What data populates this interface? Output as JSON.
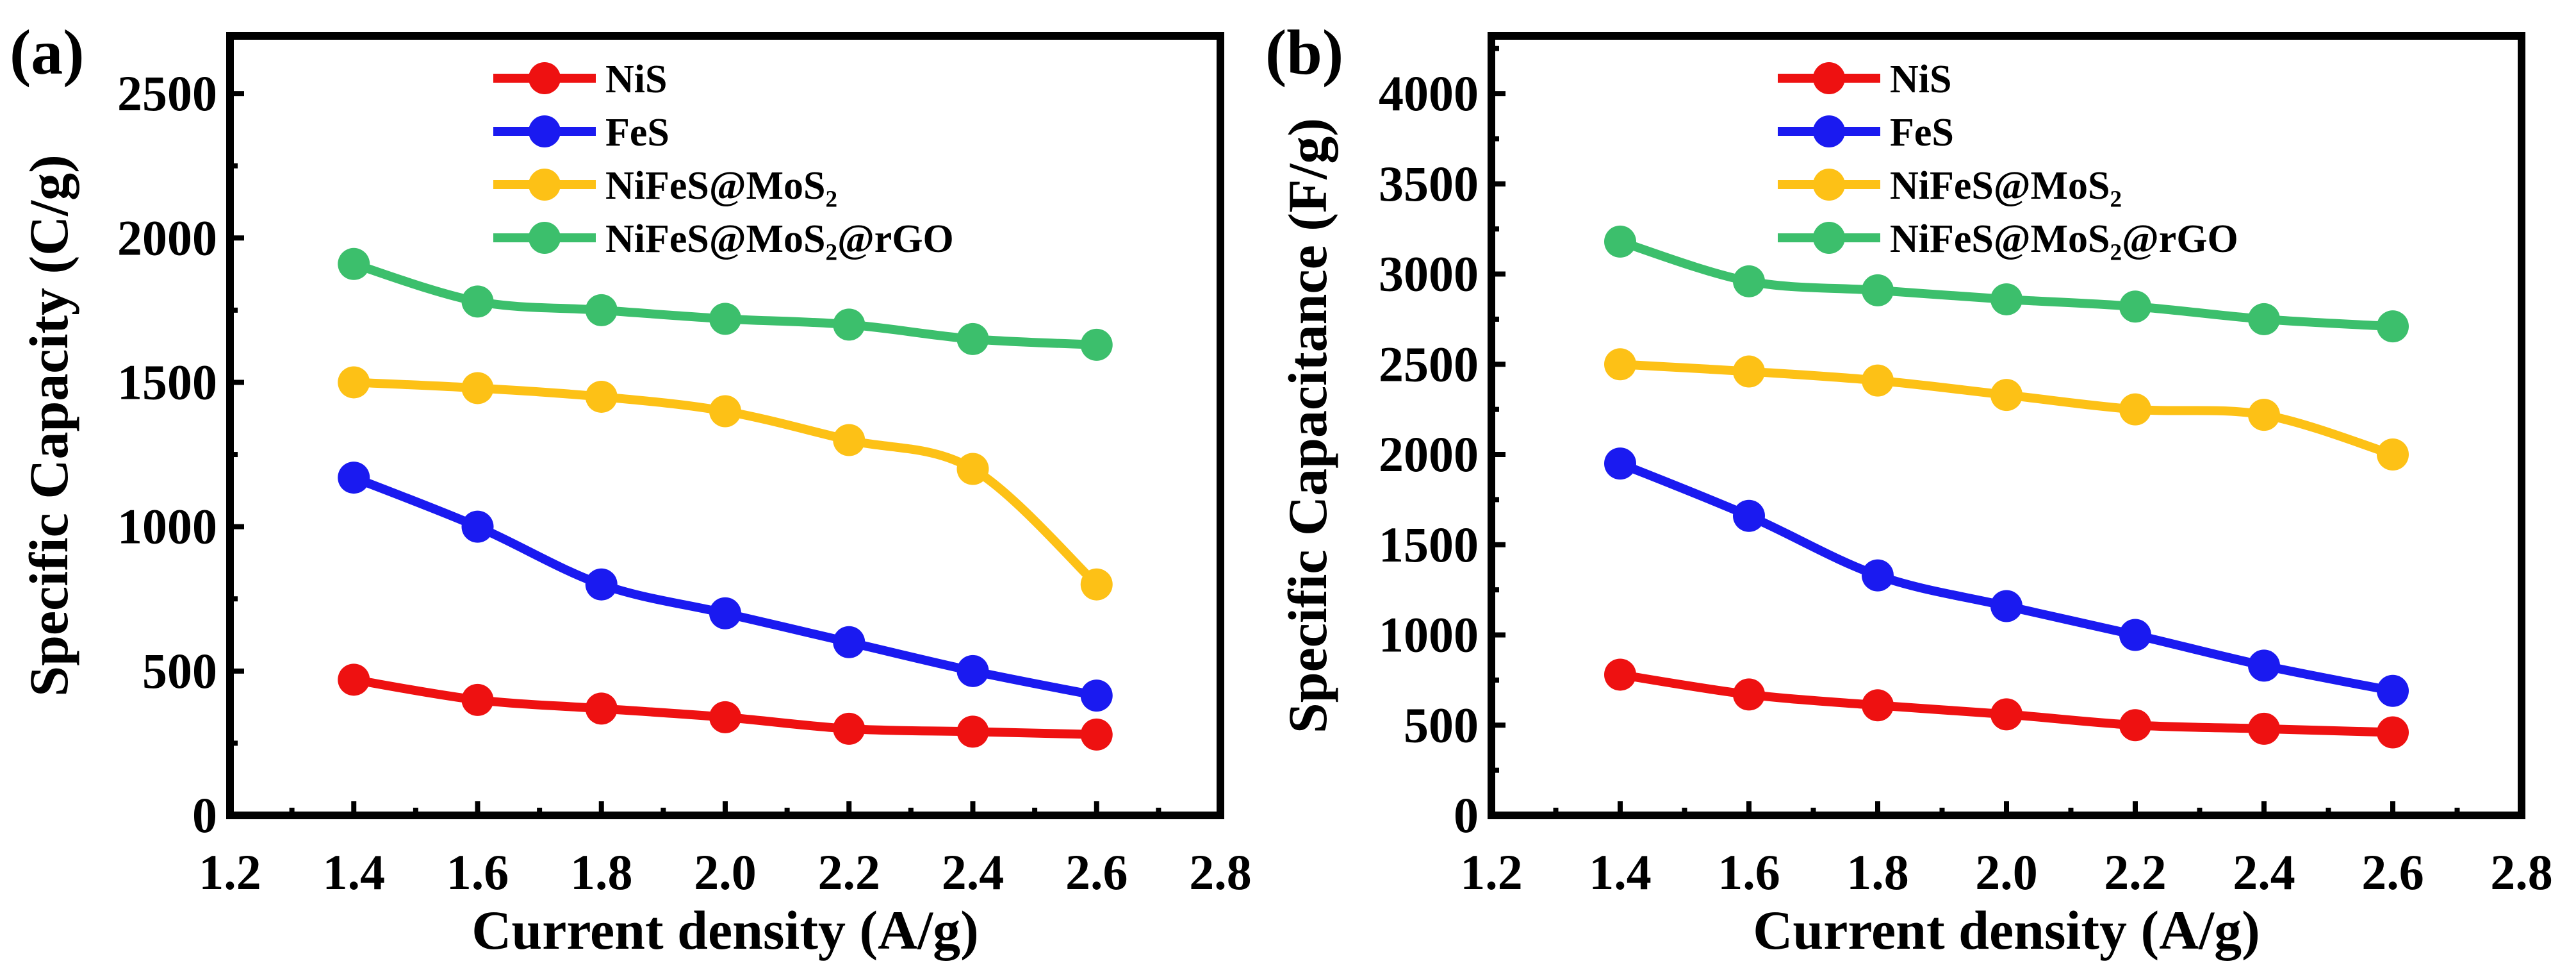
{
  "chart_data": [
    {
      "type": "line",
      "panel_label": "(a)",
      "title": "",
      "xlabel": "Current density (A/g)",
      "ylabel": "Specific Capacity (C/g)",
      "xlim": [
        1.2,
        2.8
      ],
      "ylim": [
        0,
        2700
      ],
      "xticks": [
        "1.2",
        "1.4",
        "1.6",
        "1.8",
        "2.0",
        "2.2",
        "2.4",
        "2.6",
        "2.8"
      ],
      "yticks": [
        "0",
        "500",
        "1000",
        "1500",
        "2000",
        "2500"
      ],
      "legend_position": "top-center",
      "grid": false,
      "x": [
        1.4,
        1.6,
        1.8,
        2.0,
        2.2,
        2.4,
        2.6
      ],
      "series": [
        {
          "name": "NiS",
          "color": "#ee1111",
          "values": [
            470,
            400,
            370,
            340,
            300,
            290,
            280
          ]
        },
        {
          "name": "FeS",
          "color": "#1a1af0",
          "values": [
            1170,
            1000,
            800,
            700,
            600,
            500,
            415
          ]
        },
        {
          "name": "NiFeS@MoS₂",
          "color": "#fdc116",
          "values": [
            1500,
            1480,
            1450,
            1400,
            1300,
            1200,
            800
          ]
        },
        {
          "name": "NiFeS@MoS₂@rGO",
          "color": "#3cbf6c",
          "values": [
            1910,
            1780,
            1750,
            1720,
            1700,
            1650,
            1630
          ]
        }
      ]
    },
    {
      "type": "line",
      "panel_label": "(b)",
      "title": "",
      "xlabel": "Current density (A/g)",
      "ylabel": "Specific Capacitance (F/g)",
      "xlim": [
        1.2,
        2.8
      ],
      "ylim": [
        0,
        4320
      ],
      "xticks": [
        "1.2",
        "1.4",
        "1.6",
        "1.8",
        "2.0",
        "2.2",
        "2.4",
        "2.6",
        "2.8"
      ],
      "yticks": [
        "0",
        "500",
        "1000",
        "1500",
        "2000",
        "2500",
        "3000",
        "3500",
        "4000"
      ],
      "legend_position": "top-center",
      "grid": false,
      "x": [
        1.4,
        1.6,
        1.8,
        2.0,
        2.2,
        2.4,
        2.6
      ],
      "series": [
        {
          "name": "NiS",
          "color": "#ee1111",
          "values": [
            780,
            670,
            610,
            560,
            500,
            480,
            460
          ]
        },
        {
          "name": "FeS",
          "color": "#1a1af0",
          "values": [
            1950,
            1660,
            1330,
            1160,
            1000,
            830,
            690
          ]
        },
        {
          "name": "NiFeS@MoS₂",
          "color": "#fdc116",
          "values": [
            2500,
            2460,
            2410,
            2330,
            2250,
            2220,
            2000
          ]
        },
        {
          "name": "NiFeS@MoS₂@rGO",
          "color": "#3cbf6c",
          "values": [
            3180,
            2960,
            2910,
            2860,
            2820,
            2750,
            2710
          ]
        }
      ]
    }
  ]
}
